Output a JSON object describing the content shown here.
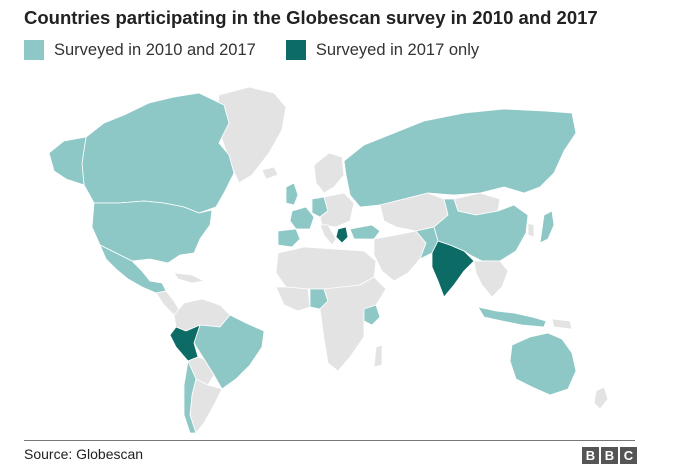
{
  "title": "Countries participating in the Globescan survey in 2010 and 2017",
  "legend": [
    {
      "label": "Surveyed in 2010 and 2017",
      "color": "#8ec8c6"
    },
    {
      "label": "Surveyed in 2017 only",
      "color": "#0d6b66"
    }
  ],
  "colors": {
    "not_surveyed": "#e3e3e3",
    "border": "#ffffff"
  },
  "countries": {
    "both": [
      "Canada",
      "United States",
      "Mexico",
      "Brazil",
      "Chile",
      "United Kingdom",
      "France",
      "Spain",
      "Germany",
      "Russia",
      "Turkey",
      "China",
      "Kenya",
      "Nigeria",
      "Pakistan",
      "Indonesia",
      "Australia"
    ],
    "only_2017": [
      "Peru",
      "Greece",
      "India"
    ]
  },
  "footer": {
    "source": "Source: Globescan",
    "logo": [
      "B",
      "B",
      "C"
    ]
  }
}
